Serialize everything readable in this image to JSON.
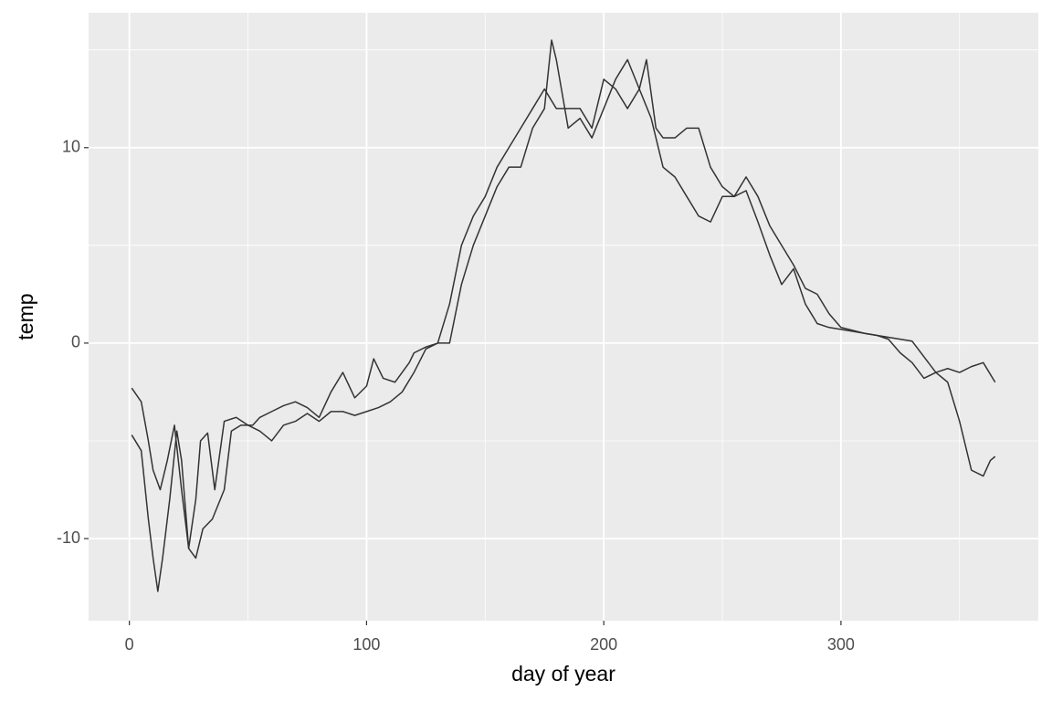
{
  "chart_data": {
    "type": "line",
    "x_label": "day of year",
    "y_label": "temp",
    "xlim": [
      -17.2,
      383.2
    ],
    "ylim": [
      -14.2,
      16.9
    ],
    "xticks": [
      0,
      100,
      200,
      300
    ],
    "yticks": [
      -10,
      0,
      10
    ],
    "x_minor_ticks": [
      50,
      150,
      250,
      350
    ],
    "y_minor_ticks": [
      -5,
      5,
      15
    ],
    "grid": true,
    "background": "#ebebeb",
    "series": [
      {
        "color": "#333333",
        "x": [
          1,
          5,
          8,
          10,
          12,
          14,
          17,
          20,
          22,
          25,
          28,
          30,
          33,
          36,
          40,
          45,
          50,
          55,
          60,
          65,
          70,
          75,
          80,
          85,
          90,
          95,
          100,
          105,
          110,
          115,
          120,
          125,
          130,
          135,
          140,
          145,
          150,
          155,
          160,
          165,
          170,
          175,
          178,
          180,
          185,
          190,
          195,
          200,
          205,
          210,
          215,
          220,
          225,
          230,
          235,
          240,
          245,
          250,
          255,
          260,
          265,
          270,
          275,
          280,
          285,
          290,
          295,
          300,
          305,
          310,
          315,
          320,
          325,
          330,
          335,
          340,
          345,
          350,
          355,
          360,
          363,
          365
        ],
        "values": [
          -4.7,
          -5.5,
          -9,
          -11,
          -12.7,
          -11,
          -8,
          -4.5,
          -6,
          -10.5,
          -8,
          -5,
          -4.6,
          -7.5,
          -4,
          -3.8,
          -4.2,
          -4.5,
          -5,
          -4.2,
          -4,
          -3.6,
          -4,
          -3.5,
          -3.5,
          -3.7,
          -3.5,
          -3.3,
          -3,
          -2.5,
          -1.5,
          -0.3,
          0,
          0,
          3,
          5,
          6.5,
          8,
          9,
          9,
          11,
          12,
          15.5,
          14.5,
          11,
          11.5,
          10.5,
          12,
          13.5,
          14.5,
          13,
          11.5,
          9,
          8.5,
          7.5,
          6.5,
          6.2,
          7.5,
          7.5,
          7.8,
          6.2,
          4.5,
          3,
          3.8,
          2,
          1,
          0.8,
          0.7,
          0.6,
          0.5,
          0.4,
          0.2,
          -0.5,
          -1,
          -1.8,
          -1.5,
          -2,
          -4,
          -6.5,
          -6.8,
          -6,
          -5.8
        ]
      },
      {
        "color": "#333333",
        "x": [
          1,
          5,
          8,
          10,
          13,
          16,
          19,
          22,
          25,
          28,
          31,
          35,
          40,
          43,
          47,
          52,
          55,
          60,
          65,
          70,
          75,
          80,
          85,
          90,
          95,
          100,
          103,
          107,
          112,
          118,
          120,
          125,
          130,
          135,
          140,
          145,
          150,
          155,
          160,
          165,
          170,
          175,
          180,
          185,
          190,
          195,
          200,
          205,
          210,
          215,
          218,
          222,
          225,
          230,
          235,
          240,
          245,
          250,
          255,
          260,
          265,
          270,
          275,
          280,
          285,
          290,
          295,
          300,
          310,
          320,
          330,
          340,
          345,
          350,
          355,
          360,
          365
        ],
        "values": [
          -2.3,
          -3,
          -5,
          -6.5,
          -7.5,
          -6,
          -4.2,
          -7.5,
          -10.5,
          -11,
          -9.5,
          -9,
          -7.5,
          -4.5,
          -4.2,
          -4.2,
          -3.8,
          -3.5,
          -3.2,
          -3,
          -3.3,
          -3.8,
          -2.5,
          -1.5,
          -2.8,
          -2.2,
          -0.8,
          -1.8,
          -2,
          -1,
          -0.5,
          -0.2,
          0,
          2,
          5,
          6.5,
          7.5,
          9,
          10,
          11,
          12,
          13,
          12,
          12,
          12,
          11,
          13.5,
          13,
          12,
          13,
          14.5,
          11,
          10.5,
          10.5,
          11,
          11,
          9,
          8,
          7.5,
          8.5,
          7.5,
          6,
          5,
          4,
          2.8,
          2.5,
          1.5,
          0.8,
          0.5,
          0.3,
          0.1,
          -1.5,
          -1.3,
          -1.5,
          -1.2,
          -1,
          -2
        ]
      }
    ]
  }
}
